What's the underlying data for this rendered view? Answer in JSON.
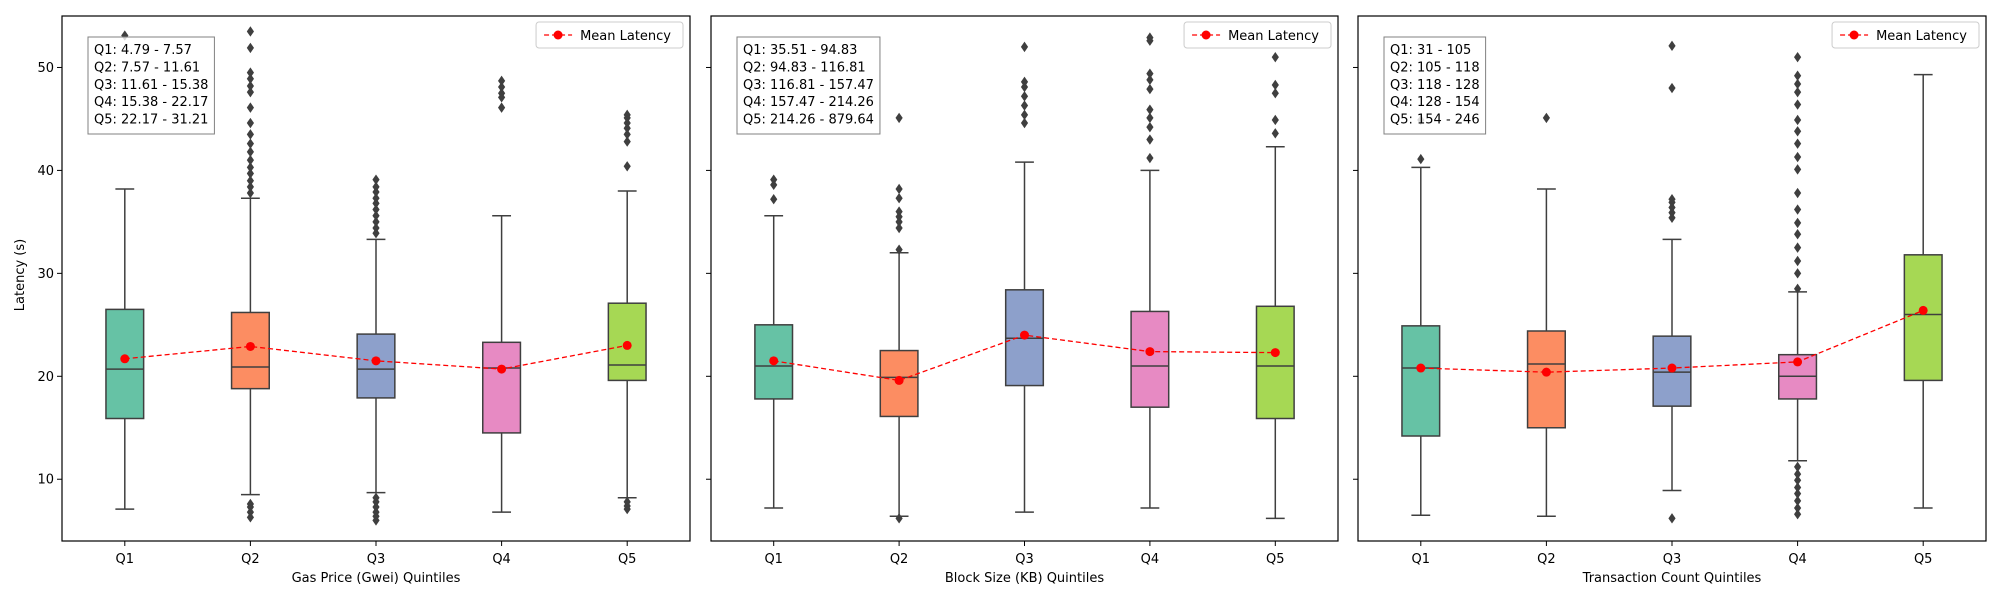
{
  "figure": {
    "shared_ylabel": "Latency (s)"
  },
  "chart_data": [
    {
      "type": "box",
      "xlabel": "Gas Price (Gwei) Quintiles",
      "ylabel": "Latency (s)",
      "categories": [
        "Q1",
        "Q2",
        "Q3",
        "Q4",
        "Q5"
      ],
      "ylim": [
        4,
        55
      ],
      "yticks": [
        10,
        20,
        30,
        40,
        50
      ],
      "legend": {
        "label": "Mean Latency",
        "position": "upper right"
      },
      "annotation": [
        "Q1: 4.79 - 7.57",
        "Q2: 7.57 - 11.61",
        "Q3: 11.61 - 15.38",
        "Q4: 15.38 - 22.17",
        "Q5: 22.17 - 31.21"
      ],
      "boxes": [
        {
          "whisker_low": 7.1,
          "q1": 15.9,
          "median": 20.7,
          "q3": 26.5,
          "whisker_high": 38.2,
          "outliers": [
            53.1
          ]
        },
        {
          "whisker_low": 8.5,
          "q1": 18.8,
          "median": 20.9,
          "q3": 26.2,
          "whisker_high": 37.3,
          "outliers": [
            6.3,
            6.8,
            7.3,
            7.6,
            37.8,
            38.4,
            39.0,
            39.7,
            40.3,
            41.0,
            41.8,
            42.6,
            43.5,
            44.6,
            46.1,
            47.6,
            48.2,
            48.9,
            49.5,
            51.9,
            53.5
          ]
        },
        {
          "whisker_low": 8.7,
          "q1": 17.9,
          "median": 20.7,
          "q3": 24.1,
          "whisker_high": 33.3,
          "outliers": [
            6.0,
            6.4,
            6.8,
            7.3,
            7.8,
            8.2,
            33.9,
            34.4,
            35.0,
            35.6,
            36.2,
            36.8,
            37.3,
            37.9,
            38.4,
            39.1
          ]
        },
        {
          "whisker_low": 6.8,
          "q1": 14.5,
          "median": 20.8,
          "q3": 23.3,
          "whisker_high": 35.6,
          "outliers": [
            46.1,
            47.1,
            47.5,
            48.1,
            48.7
          ]
        },
        {
          "whisker_low": 8.2,
          "q1": 19.6,
          "median": 21.1,
          "q3": 27.1,
          "whisker_high": 38.0,
          "outliers": [
            7.1,
            7.4,
            7.8,
            40.4,
            42.8,
            43.5,
            44.1,
            44.6,
            45.1,
            45.4
          ]
        }
      ],
      "means": [
        21.7,
        22.9,
        21.5,
        20.7,
        23.0
      ]
    },
    {
      "type": "box",
      "xlabel": "Block Size (KB) Quintiles",
      "ylabel": "",
      "categories": [
        "Q1",
        "Q2",
        "Q3",
        "Q4",
        "Q5"
      ],
      "ylim": [
        4,
        55
      ],
      "yticks": [
        10,
        20,
        30,
        40,
        50
      ],
      "legend": {
        "label": "Mean Latency",
        "position": "upper right"
      },
      "annotation": [
        "Q1: 35.51 - 94.83",
        "Q2: 94.83 - 116.81",
        "Q3: 116.81 - 157.47",
        "Q4: 157.47 - 214.26",
        "Q5: 214.26 - 879.64"
      ],
      "boxes": [
        {
          "whisker_low": 7.2,
          "q1": 17.8,
          "median": 21.0,
          "q3": 25.0,
          "whisker_high": 35.6,
          "outliers": [
            37.2,
            38.6,
            39.1
          ]
        },
        {
          "whisker_low": 6.4,
          "q1": 16.1,
          "median": 19.9,
          "q3": 22.5,
          "whisker_high": 32.0,
          "outliers": [
            6.2,
            32.3,
            34.4,
            35.0,
            35.5,
            36.0,
            37.3,
            38.2,
            45.1
          ]
        },
        {
          "whisker_low": 6.8,
          "q1": 19.1,
          "median": 23.7,
          "q3": 28.4,
          "whisker_high": 40.8,
          "outliers": [
            44.6,
            45.4,
            46.3,
            47.2,
            48.1,
            48.6,
            52.0
          ]
        },
        {
          "whisker_low": 7.2,
          "q1": 17.0,
          "median": 21.0,
          "q3": 26.3,
          "whisker_high": 40.0,
          "outliers": [
            41.2,
            43.0,
            44.2,
            45.1,
            45.9,
            47.9,
            48.8,
            49.4,
            52.6,
            52.9
          ]
        },
        {
          "whisker_low": 6.2,
          "q1": 15.9,
          "median": 21.0,
          "q3": 26.8,
          "whisker_high": 42.3,
          "outliers": [
            43.6,
            44.9,
            47.5,
            48.3,
            51.0,
            53.2
          ]
        }
      ],
      "means": [
        21.5,
        19.6,
        24.0,
        22.4,
        22.3
      ]
    },
    {
      "type": "box",
      "xlabel": "Transaction Count Quintiles",
      "ylabel": "",
      "categories": [
        "Q1",
        "Q2",
        "Q3",
        "Q4",
        "Q5"
      ],
      "ylim": [
        4,
        55
      ],
      "yticks": [
        10,
        20,
        30,
        40,
        50
      ],
      "legend": {
        "label": "Mean Latency",
        "position": "upper right"
      },
      "annotation": [
        "Q1: 31 - 105",
        "Q2: 105 - 118",
        "Q3: 118 - 128",
        "Q4: 128 - 154",
        "Q5: 154 - 246"
      ],
      "boxes": [
        {
          "whisker_low": 6.5,
          "q1": 14.2,
          "median": 20.8,
          "q3": 24.9,
          "whisker_high": 40.3,
          "outliers": [
            41.1,
            44.9
          ]
        },
        {
          "whisker_low": 6.4,
          "q1": 15.0,
          "median": 21.2,
          "q3": 24.4,
          "whisker_high": 38.2,
          "outliers": [
            45.1
          ]
        },
        {
          "whisker_low": 8.9,
          "q1": 17.1,
          "median": 20.4,
          "q3": 23.9,
          "whisker_high": 33.3,
          "outliers": [
            6.2,
            35.4,
            35.9,
            36.4,
            36.9,
            37.2,
            48.0,
            52.1
          ]
        },
        {
          "whisker_low": 11.8,
          "q1": 17.8,
          "median": 20.0,
          "q3": 22.1,
          "whisker_high": 28.2,
          "outliers": [
            6.6,
            7.2,
            7.9,
            8.6,
            9.2,
            9.9,
            10.5,
            11.2,
            28.5,
            30.0,
            31.2,
            32.5,
            33.8,
            34.9,
            36.2,
            37.8,
            40.1,
            41.3,
            42.6,
            43.8,
            44.9,
            46.4,
            47.6,
            48.4,
            49.2,
            51.0
          ]
        },
        {
          "whisker_low": 7.2,
          "q1": 19.6,
          "median": 26.0,
          "q3": 31.8,
          "whisker_high": 49.3,
          "outliers": [
            53.2
          ]
        }
      ],
      "means": [
        20.8,
        20.4,
        20.8,
        21.4,
        26.4
      ]
    }
  ],
  "colors": {
    "boxes": [
      "#66c2a5",
      "#fc8d62",
      "#8da0cb",
      "#e78ac3",
      "#a6d854"
    ],
    "box_edge": "#3f3f3f",
    "mean_line": "#ff0000",
    "axes": "#000000"
  }
}
